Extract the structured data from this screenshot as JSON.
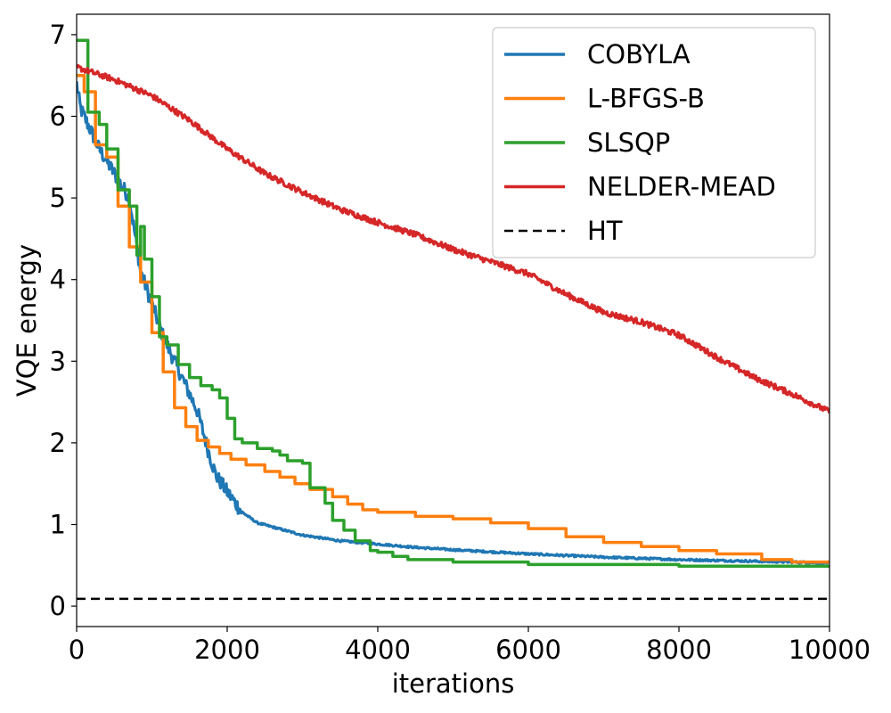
{
  "chart_data": {
    "type": "line",
    "title": "",
    "xlabel": "iterations",
    "ylabel": "VQE energy",
    "xlim": [
      0,
      10000
    ],
    "ylim": [
      -0.25,
      7.25
    ],
    "xticks": [
      0,
      2000,
      4000,
      6000,
      8000,
      10000
    ],
    "yticks": [
      0,
      1,
      2,
      3,
      4,
      5,
      6,
      7
    ],
    "grid": false,
    "legend_position": "top-right",
    "series": [
      {
        "name": "COBYLA",
        "color": "#1f77b4",
        "style": "solid",
        "noisy": true,
        "x": [
          0,
          50,
          150,
          300,
          500,
          700,
          850,
          1000,
          1150,
          1300,
          1450,
          1600,
          1750,
          1850,
          2000,
          2200,
          2400,
          2600,
          2800,
          3000,
          3500,
          4000,
          4500,
          5000,
          6000,
          7000,
          8000,
          9000,
          10000
        ],
        "y": [
          6.4,
          6.1,
          5.9,
          5.6,
          5.3,
          5.0,
          4.1,
          3.7,
          3.3,
          3.0,
          2.7,
          2.4,
          1.9,
          1.6,
          1.4,
          1.15,
          1.02,
          0.97,
          0.92,
          0.87,
          0.8,
          0.76,
          0.72,
          0.69,
          0.64,
          0.6,
          0.57,
          0.55,
          0.53
        ]
      },
      {
        "name": "L-BFGS-B",
        "color": "#ff7f0e",
        "style": "step",
        "noisy": false,
        "x": [
          0,
          100,
          250,
          400,
          550,
          700,
          850,
          1000,
          1150,
          1300,
          1450,
          1600,
          1750,
          1900,
          2050,
          2250,
          2500,
          2700,
          2900,
          3100,
          3400,
          3600,
          3800,
          4000,
          4500,
          5000,
          5500,
          6000,
          6500,
          7000,
          7500,
          8000,
          8500,
          8900,
          9100,
          9500,
          10000
        ],
        "y": [
          6.5,
          6.3,
          5.65,
          5.5,
          4.9,
          4.4,
          3.97,
          3.35,
          2.87,
          2.43,
          2.2,
          2.03,
          1.95,
          1.87,
          1.8,
          1.73,
          1.65,
          1.58,
          1.5,
          1.43,
          1.34,
          1.25,
          1.18,
          1.15,
          1.1,
          1.07,
          1.02,
          0.95,
          0.85,
          0.78,
          0.73,
          0.68,
          0.64,
          0.64,
          0.57,
          0.54,
          0.53
        ]
      },
      {
        "name": "SLSQP",
        "color": "#2ca02c",
        "style": "step",
        "noisy": false,
        "x": [
          0,
          150,
          300,
          400,
          550,
          700,
          800,
          850,
          900,
          1000,
          1100,
          1200,
          1350,
          1500,
          1650,
          1800,
          1900,
          2000,
          2100,
          2200,
          2400,
          2600,
          2700,
          2800,
          3000,
          3100,
          3200,
          3300,
          3400,
          3550,
          3700,
          3900,
          4000,
          4200,
          4400,
          5000,
          6000,
          8000,
          10000
        ],
        "y": [
          6.93,
          6.05,
          5.9,
          5.6,
          5.1,
          4.9,
          4.3,
          4.65,
          4.25,
          3.79,
          3.3,
          3.2,
          2.96,
          2.8,
          2.7,
          2.65,
          2.55,
          2.3,
          2.05,
          2.0,
          1.93,
          1.9,
          1.85,
          1.78,
          1.75,
          1.45,
          1.45,
          1.26,
          1.05,
          0.93,
          0.8,
          0.68,
          0.66,
          0.61,
          0.57,
          0.54,
          0.51,
          0.49,
          0.48
        ]
      },
      {
        "name": "NELDER-MEAD",
        "color": "#d62728",
        "style": "solid",
        "noisy": true,
        "x": [
          0,
          500,
          1000,
          1500,
          2000,
          2500,
          3000,
          3500,
          4000,
          4500,
          5000,
          5500,
          6000,
          6500,
          7000,
          7500,
          8000,
          8500,
          9000,
          9500,
          10000
        ],
        "y": [
          6.6,
          6.45,
          6.25,
          5.95,
          5.6,
          5.3,
          5.07,
          4.86,
          4.7,
          4.55,
          4.37,
          4.22,
          4.07,
          3.82,
          3.6,
          3.48,
          3.32,
          3.05,
          2.8,
          2.6,
          2.38
        ]
      },
      {
        "name": "HT",
        "color": "#000000",
        "style": "dashed",
        "noisy": false,
        "x": [
          0,
          10000
        ],
        "y": [
          0.09,
          0.09
        ]
      }
    ]
  }
}
